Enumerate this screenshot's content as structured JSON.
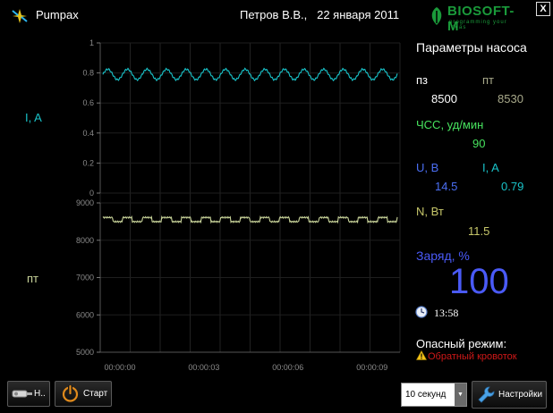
{
  "header": {
    "app_title": "Pumpax",
    "user_date": "Петров В.В.,   22 января 2011",
    "brand_name": "BIOSOFT-M",
    "brand_tagline": "programming your ideas",
    "close_label": "X"
  },
  "chart_data": {
    "type": "line",
    "x_ticks": [
      "00:00:00",
      "00:00:03",
      "00:00:06",
      "00:00:09"
    ],
    "panels": [
      {
        "label": "I, A",
        "color": "#19c3c9",
        "y_ticks": [
          "1",
          "0.8",
          "0.6",
          "0.4",
          "0.2",
          "0"
        ],
        "ylim": [
          0,
          1
        ],
        "series_mean": 0.79,
        "series_amplitude": 0.035,
        "cycles": 15
      },
      {
        "label": "пт",
        "color": "#c9d49a",
        "y_ticks": [
          "9000",
          "8000",
          "7000",
          "6000",
          "5000"
        ],
        "ylim": [
          5000,
          9000
        ],
        "series_mean": 8530,
        "series_amplitude": 80,
        "cycles": 15
      }
    ]
  },
  "panel": {
    "title": "Параметры насоса",
    "pz_label": "пз",
    "pt_label": "пт",
    "pz_value": "8500",
    "pt_value": "8530",
    "hr_label": "ЧСС, уд/мин",
    "hr_value": "90",
    "u_label": "U, В",
    "i_label": "I, A",
    "u_value": "14.5",
    "i_value": "0.79",
    "n_label": "N, Вт",
    "n_value": "11.5",
    "charge_label": "Заряд, %",
    "charge_value": "100",
    "time": "13:58",
    "danger_label": "Опасный режим:",
    "danger_value": "Обратный кровоток"
  },
  "toolbar": {
    "n_label": "Н..",
    "start_label": "Старт",
    "interval_value": "10 секунд",
    "settings_label": "Настройки"
  },
  "icons": {
    "logo": "pumpax-logo-icon",
    "clock": "clock-icon",
    "warning": "warning-icon",
    "power": "power-icon",
    "wrench": "wrench-icon"
  }
}
